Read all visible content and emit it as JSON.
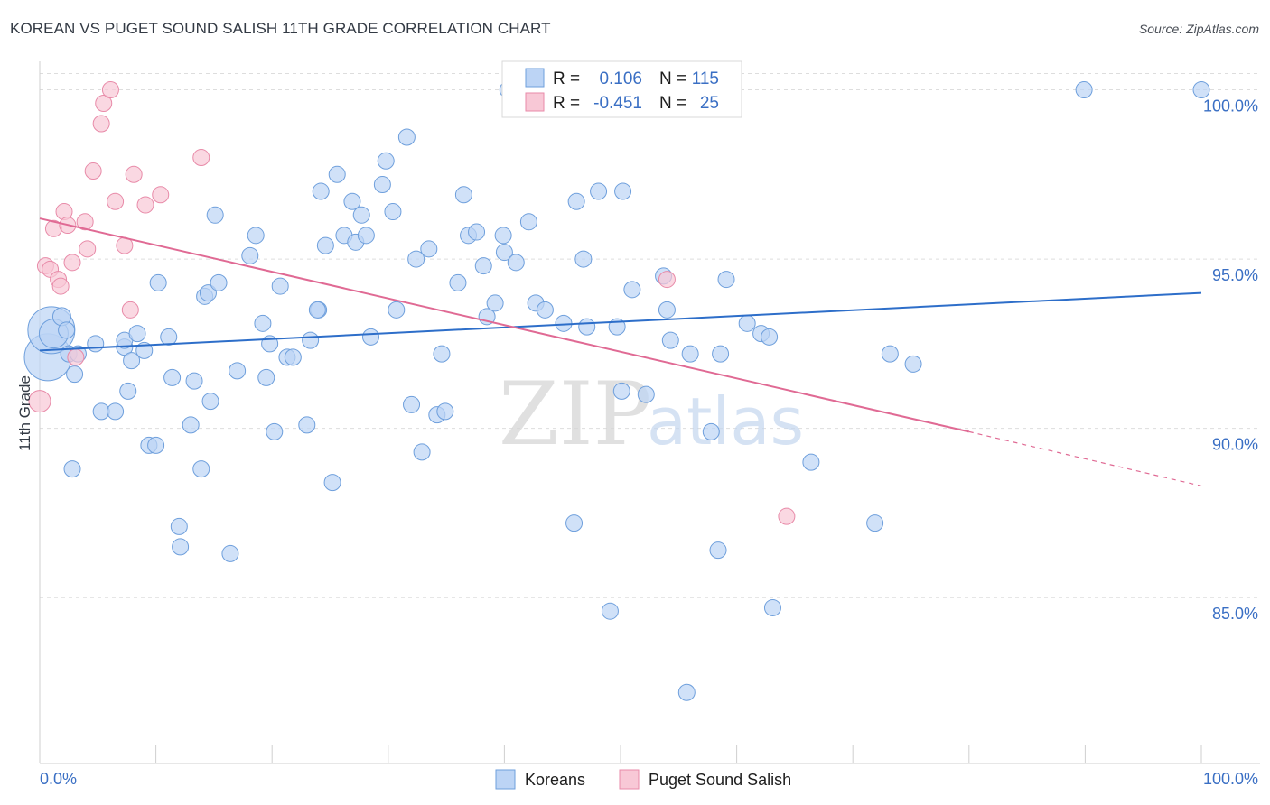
{
  "title": "KOREAN VS PUGET SOUND SALISH 11TH GRADE CORRELATION CHART",
  "source": "Source: ZipAtlas.com",
  "watermark": {
    "zip": "ZIP",
    "atlas": "atlas"
  },
  "legend_stats": [
    {
      "r_label": "R =",
      "r_value": "0.106",
      "n_label": "N =",
      "n_value": "115"
    },
    {
      "r_label": "R =",
      "r_value": "-0.451",
      "n_label": "N =",
      "n_value": "25"
    }
  ],
  "colors": {
    "blue_fill": "#bcd4f5",
    "blue_stroke": "#6e9fdc",
    "blue_line": "#2d6ec9",
    "pink_fill": "#f8c8d6",
    "pink_stroke": "#e88aa8",
    "pink_line": "#e06a94",
    "axis_text": "#3a6fc4",
    "grid": "#dddddd"
  },
  "chart_data": {
    "type": "scatter",
    "title": "KOREAN VS PUGET SOUND SALISH 11TH GRADE CORRELATION CHART",
    "xlabel": "",
    "ylabel": "11th Grade",
    "xlim": [
      0,
      100
    ],
    "ylim": [
      80.1,
      101
    ],
    "x_tick_labels": [
      "0.0%",
      "100.0%"
    ],
    "y_ticks": [
      85,
      90,
      95,
      100
    ],
    "y_tick_labels": [
      "85.0%",
      "90.0%",
      "95.0%",
      "100.0%"
    ],
    "grid": "horizontal dashed",
    "legend_position": "bottom",
    "series": [
      {
        "name": "Koreans",
        "r": 0.106,
        "n": 115,
        "trend": {
          "x": [
            0,
            100
          ],
          "y": [
            92.3,
            94.0
          ]
        },
        "points": [
          [
            0.7,
            92.1,
            26
          ],
          [
            1.0,
            92.9,
            26
          ],
          [
            1.2,
            92.8,
            16
          ],
          [
            1.9,
            93.3,
            10
          ],
          [
            2.3,
            92.9,
            9
          ],
          [
            2.5,
            92.2,
            9
          ],
          [
            2.8,
            88.8,
            9
          ],
          [
            3.0,
            91.6,
            9
          ],
          [
            3.3,
            92.2,
            9
          ],
          [
            4.8,
            92.5,
            9
          ],
          [
            5.3,
            90.5,
            9
          ],
          [
            6.5,
            90.5,
            9
          ],
          [
            7.3,
            92.4,
            9
          ],
          [
            7.3,
            92.6,
            9
          ],
          [
            7.6,
            91.1,
            9
          ],
          [
            7.9,
            92.0,
            9
          ],
          [
            8.4,
            92.8,
            9
          ],
          [
            9.0,
            92.3,
            9
          ],
          [
            9.4,
            89.5,
            9
          ],
          [
            10.0,
            89.5,
            9
          ],
          [
            10.2,
            94.3,
            9
          ],
          [
            11.1,
            92.7,
            9
          ],
          [
            11.4,
            91.5,
            9
          ],
          [
            12.0,
            87.1,
            9
          ],
          [
            12.1,
            86.5,
            9
          ],
          [
            13.0,
            90.1,
            9
          ],
          [
            13.3,
            91.4,
            9
          ],
          [
            13.9,
            88.8,
            9
          ],
          [
            14.2,
            93.9,
            9
          ],
          [
            14.5,
            94.0,
            9
          ],
          [
            14.7,
            90.8,
            9
          ],
          [
            15.1,
            96.3,
            9
          ],
          [
            15.4,
            94.3,
            9
          ],
          [
            16.4,
            86.3,
            9
          ],
          [
            17.0,
            91.7,
            9
          ],
          [
            18.1,
            95.1,
            9
          ],
          [
            18.6,
            95.7,
            9
          ],
          [
            19.2,
            93.1,
            9
          ],
          [
            19.5,
            91.5,
            9
          ],
          [
            19.8,
            92.5,
            9
          ],
          [
            20.2,
            89.9,
            9
          ],
          [
            20.7,
            94.2,
            9
          ],
          [
            21.3,
            92.1,
            9
          ],
          [
            21.8,
            92.1,
            9
          ],
          [
            23.0,
            90.1,
            9
          ],
          [
            23.3,
            92.6,
            9
          ],
          [
            24.0,
            93.5,
            9
          ],
          [
            24.2,
            97.0,
            9
          ],
          [
            24.6,
            95.4,
            9
          ],
          [
            25.2,
            88.4,
            9
          ],
          [
            25.6,
            97.5,
            9
          ],
          [
            26.2,
            95.7,
            9
          ],
          [
            26.9,
            96.7,
            9
          ],
          [
            27.2,
            95.5,
            9
          ],
          [
            27.7,
            96.3,
            9
          ],
          [
            28.1,
            95.7,
            9
          ],
          [
            28.5,
            92.7,
            9
          ],
          [
            29.5,
            97.2,
            9
          ],
          [
            29.8,
            97.9,
            9
          ],
          [
            30.4,
            96.4,
            9
          ],
          [
            30.7,
            93.5,
            9
          ],
          [
            31.6,
            98.6,
            9
          ],
          [
            32.0,
            90.7,
            9
          ],
          [
            32.4,
            95.0,
            9
          ],
          [
            32.9,
            89.3,
            9
          ],
          [
            33.5,
            95.3,
            9
          ],
          [
            34.2,
            90.4,
            9
          ],
          [
            34.6,
            92.2,
            9
          ],
          [
            34.9,
            90.5,
            9
          ],
          [
            36.0,
            94.3,
            9
          ],
          [
            36.5,
            96.9,
            9
          ],
          [
            36.9,
            95.7,
            9
          ],
          [
            37.6,
            95.8,
            9
          ],
          [
            38.2,
            94.8,
            9
          ],
          [
            38.5,
            93.3,
            9
          ],
          [
            39.2,
            93.7,
            9
          ],
          [
            39.9,
            95.7,
            9
          ],
          [
            40.0,
            95.2,
            9
          ],
          [
            41.0,
            94.9,
            9
          ],
          [
            42.1,
            96.1,
            9
          ],
          [
            42.7,
            93.7,
            9
          ],
          [
            43.5,
            93.5,
            9
          ],
          [
            45.1,
            93.1,
            9
          ],
          [
            46.0,
            87.2,
            9
          ],
          [
            46.2,
            96.7,
            9
          ],
          [
            46.8,
            95.0,
            9
          ],
          [
            47.1,
            93.0,
            9
          ],
          [
            48.1,
            97.0,
            9
          ],
          [
            49.1,
            84.6,
            9
          ],
          [
            49.7,
            93.0,
            9
          ],
          [
            50.2,
            97.0,
            9
          ],
          [
            50.1,
            91.1,
            9
          ],
          [
            51.0,
            94.1,
            9
          ],
          [
            52.2,
            91.0,
            9
          ],
          [
            53.7,
            94.5,
            9
          ],
          [
            54.0,
            93.5,
            9
          ],
          [
            54.3,
            92.6,
            9
          ],
          [
            55.7,
            82.2,
            9
          ],
          [
            56.0,
            92.2,
            9
          ],
          [
            57.8,
            89.9,
            9
          ],
          [
            58.4,
            86.4,
            9
          ],
          [
            58.6,
            92.2,
            9
          ],
          [
            59.1,
            94.4,
            9
          ],
          [
            60.9,
            93.1,
            9
          ],
          [
            62.1,
            92.8,
            9
          ],
          [
            62.8,
            92.7,
            9
          ],
          [
            63.1,
            84.7,
            9
          ],
          [
            66.4,
            89.0,
            9
          ],
          [
            71.9,
            87.2,
            9
          ],
          [
            73.2,
            92.2,
            9
          ],
          [
            75.2,
            91.9,
            9
          ],
          [
            89.9,
            100.0,
            9
          ],
          [
            100.0,
            100.0,
            9
          ],
          [
            40.3,
            100.0,
            9
          ],
          [
            23.9,
            93.5,
            9
          ]
        ]
      },
      {
        "name": "Puget Sound Salish",
        "r": -0.451,
        "n": 25,
        "trend": {
          "x": [
            0,
            80,
            100
          ],
          "y": [
            96.2,
            89.9,
            88.3
          ],
          "dashed_from_x": 80
        },
        "points": [
          [
            0.0,
            90.8,
            12
          ],
          [
            0.5,
            94.8,
            9
          ],
          [
            0.9,
            94.7,
            9
          ],
          [
            1.2,
            95.9,
            9
          ],
          [
            1.6,
            94.4,
            9
          ],
          [
            1.8,
            94.2,
            9
          ],
          [
            2.1,
            96.4,
            9
          ],
          [
            2.4,
            96.0,
            9
          ],
          [
            2.8,
            94.9,
            9
          ],
          [
            3.1,
            92.1,
            9
          ],
          [
            3.9,
            96.1,
            9
          ],
          [
            4.1,
            95.3,
            9
          ],
          [
            4.6,
            97.6,
            9
          ],
          [
            5.3,
            99.0,
            9
          ],
          [
            5.5,
            99.6,
            9
          ],
          [
            6.1,
            100.0,
            9
          ],
          [
            6.5,
            96.7,
            9
          ],
          [
            7.3,
            95.4,
            9
          ],
          [
            7.8,
            93.5,
            9
          ],
          [
            8.1,
            97.5,
            9
          ],
          [
            9.1,
            96.6,
            9
          ],
          [
            10.4,
            96.9,
            9
          ],
          [
            13.9,
            98.0,
            9
          ],
          [
            54.0,
            94.4,
            9
          ],
          [
            64.3,
            87.4,
            9
          ]
        ]
      }
    ]
  }
}
